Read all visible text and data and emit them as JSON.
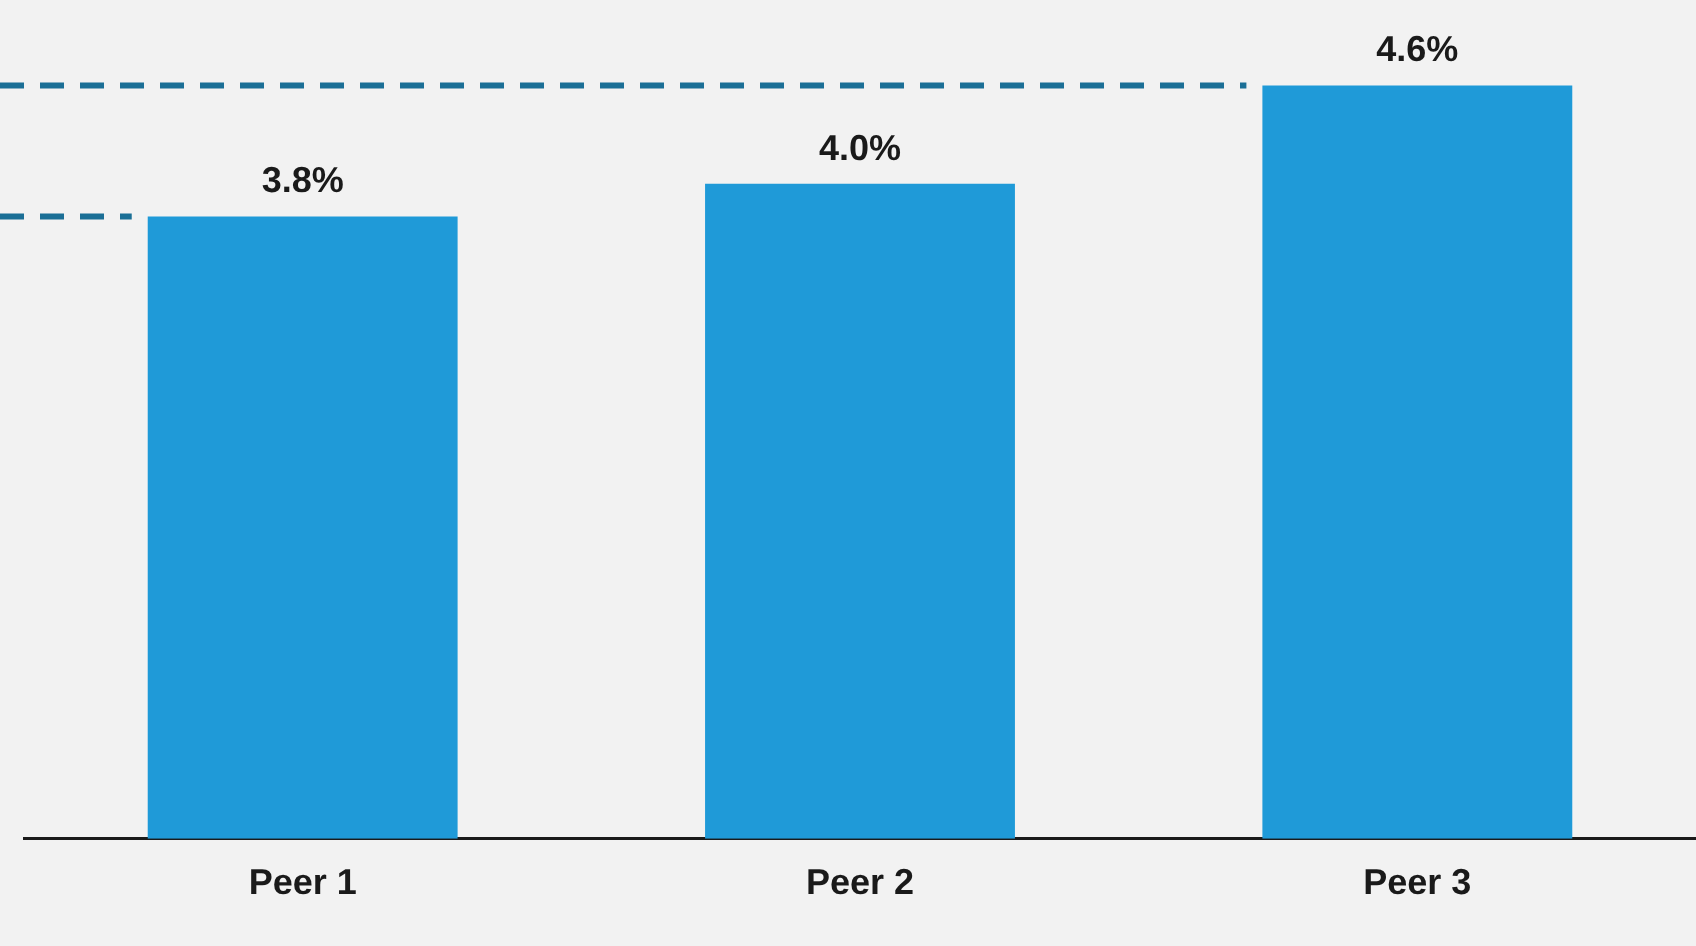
{
  "chart_data": {
    "type": "bar",
    "categories": [
      "Peer 1",
      "Peer 2",
      "Peer 3"
    ],
    "values": [
      3.8,
      4.0,
      4.6
    ],
    "color": "#1f9ad8",
    "value_labels": [
      "3.8%",
      "4.0%",
      "4.6%"
    ],
    "ref_lines": [
      {
        "axis": "y",
        "value": 4.6,
        "color": "#1b6f96",
        "line_style": "dashed"
      },
      {
        "axis": "y",
        "value": 3.8,
        "color": "#1b6f96",
        "line_style": "dashed"
      }
    ],
    "grid": false,
    "legend": false
  }
}
